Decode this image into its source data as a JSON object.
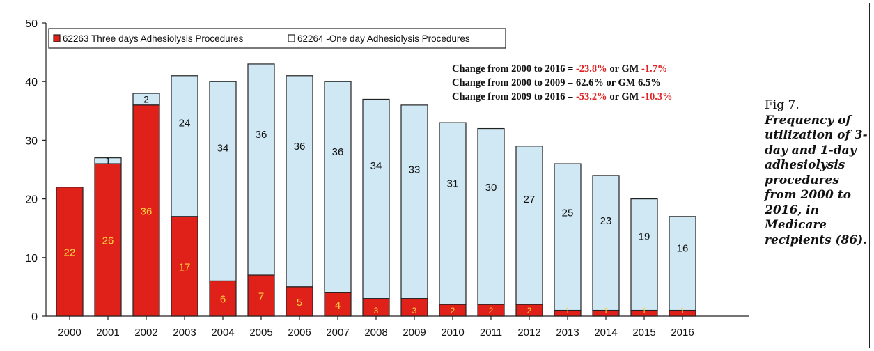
{
  "caption": {
    "fig_label": "Fig 7.",
    "text": "Frequency of utilization of 3-day and 1-day adhesiolysis procedures from 2000 to 2016, in Medicare recipients (86)."
  },
  "colors": {
    "three_day": "#e0211a",
    "one_day": "#cfe8f3",
    "bar_border": "#222222",
    "negative": "#e02020",
    "three_day_label": "#ffd23f"
  },
  "annotations": [
    {
      "prefix": "Change from 2000 to 2016 = ",
      "pct": "-23.8%",
      "mid": " or GM ",
      "gm": "-1.7%",
      "negative": true
    },
    {
      "prefix": "Change from 2000 to 2009 = ",
      "pct": "62.6%",
      "mid": " or GM ",
      "gm": "6.5%",
      "negative": false
    },
    {
      "prefix": "Change from 2009 to 2016 = ",
      "pct": "-53.2%",
      "mid": " or GM ",
      "gm": "-10.3%",
      "negative": true
    }
  ],
  "chart_data": {
    "type": "bar",
    "stacked": true,
    "title": "",
    "xlabel": "",
    "ylabel": "",
    "ylim": [
      0,
      50
    ],
    "yticks": [
      0,
      10,
      20,
      30,
      40,
      50
    ],
    "grid": false,
    "legend_position": "top-left",
    "categories": [
      "2000",
      "2001",
      "2002",
      "2003",
      "2004",
      "2005",
      "2006",
      "2007",
      "2008",
      "2009",
      "2010",
      "2011",
      "2012",
      "2013",
      "2014",
      "2015",
      "2016"
    ],
    "series": [
      {
        "name": "62263 Three days Adhesiolysis Procedures",
        "values": [
          22,
          26,
          36,
          17,
          6,
          7,
          5,
          4,
          3,
          3,
          2,
          2,
          2,
          1,
          1,
          1,
          1
        ],
        "labels": [
          "22",
          "26",
          "36",
          "17",
          "6",
          "7",
          "5",
          "4",
          "3",
          "3",
          "2",
          "2",
          "2",
          "1",
          "1",
          "1",
          "1"
        ]
      },
      {
        "name": "62264 -One day Adhesiolysis Procedures",
        "values": [
          0,
          1,
          2,
          24,
          34,
          36,
          36,
          36,
          34,
          33,
          31,
          30,
          27,
          25,
          23,
          19,
          16
        ],
        "labels": [
          "",
          "1",
          "2",
          "24",
          "34",
          "36",
          "36",
          "36",
          "34",
          "33",
          "31",
          "30",
          "27",
          "25",
          "23",
          "19",
          "16"
        ]
      }
    ]
  }
}
